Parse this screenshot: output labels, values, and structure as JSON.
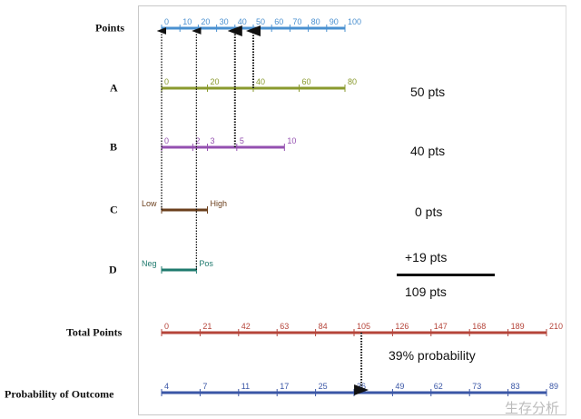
{
  "row_labels": {
    "points": "Points",
    "a": "A",
    "b": "B",
    "c": "C",
    "d": "D",
    "total": "Total Points",
    "prob": "Probability of Outcome"
  },
  "scales": [
    {
      "id": "points",
      "color": "#4a90d0",
      "domain": [
        0,
        100
      ],
      "ticks": [
        0,
        10,
        20,
        30,
        40,
        50,
        60,
        70,
        80,
        90,
        100
      ],
      "labels": [
        "0",
        "10",
        "20",
        "30",
        "40",
        "50",
        "60",
        "70",
        "80",
        "90",
        "100"
      ]
    },
    {
      "id": "a",
      "color": "#8a9a2e",
      "domain": [
        0,
        80
      ],
      "ticks": [
        0,
        20,
        40,
        60,
        80
      ],
      "labels": [
        "0",
        "20",
        "40",
        "60",
        "80"
      ]
    },
    {
      "id": "b",
      "color": "#9450b0",
      "tick_points": [
        0,
        17,
        25,
        41,
        67
      ],
      "labels": [
        "0",
        "2",
        "3",
        "5",
        "10"
      ]
    },
    {
      "id": "c",
      "color": "#6b3f1c",
      "tick_points": [
        0,
        25
      ],
      "labels": [
        "Low",
        "High"
      ]
    },
    {
      "id": "d",
      "color": "#1f7a6e",
      "tick_points": [
        0,
        19
      ],
      "labels": [
        "Neg",
        "Pos"
      ]
    },
    {
      "id": "total",
      "color": "#b5443a",
      "domain": [
        0,
        210
      ],
      "ticks": [
        0,
        21,
        42,
        63,
        84,
        105,
        126,
        147,
        168,
        189,
        210
      ],
      "labels": [
        "0",
        "21",
        "42",
        "63",
        "84",
        "105",
        "126",
        "147",
        "168",
        "189",
        "210"
      ]
    },
    {
      "id": "prob",
      "color": "#3a56a6",
      "domain": [
        0,
        210
      ],
      "ticks": [
        0,
        21,
        42,
        63,
        84,
        105,
        126,
        147,
        168,
        189,
        210
      ],
      "labels": [
        "4",
        "7",
        "11",
        "17",
        "25",
        "36",
        "49",
        "62",
        "73",
        "83",
        "89"
      ]
    }
  ],
  "selected_points": {
    "a": 50,
    "b": 40,
    "c": 0,
    "d": 19,
    "total": 109
  },
  "results": {
    "a": "50 pts",
    "b": "40 pts",
    "c": "0 pts",
    "d": "+19 pts",
    "total": "109  pts",
    "probability": "39% probability"
  },
  "watermark": "生存分析"
}
